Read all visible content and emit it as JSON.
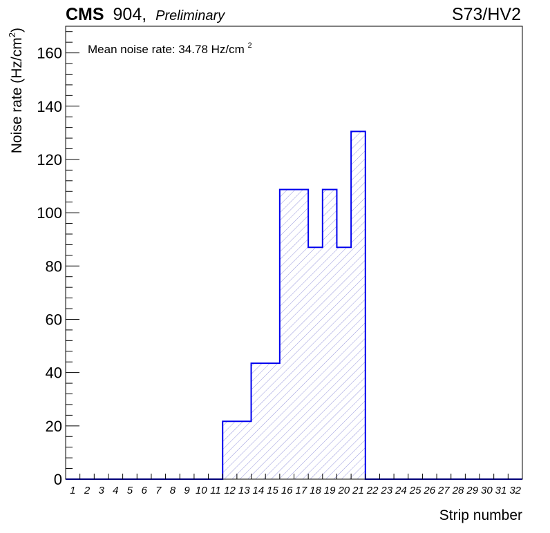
{
  "header": {
    "experiment": "CMS",
    "location": "904,",
    "status": "Preliminary",
    "run_label": "S73/HV2"
  },
  "annotation": {
    "text": "Mean noise rate: 34.78 Hz/cm",
    "superscript": "2"
  },
  "chart_data": {
    "type": "bar",
    "style": "step-histogram",
    "categories": [
      "1",
      "2",
      "3",
      "4",
      "5",
      "6",
      "7",
      "8",
      "9",
      "10",
      "11",
      "12",
      "13",
      "14",
      "15",
      "16",
      "17",
      "18",
      "19",
      "20",
      "21",
      "22",
      "23",
      "24",
      "25",
      "26",
      "27",
      "28",
      "29",
      "30",
      "31",
      "32"
    ],
    "values": [
      0,
      0,
      0,
      0,
      0,
      0,
      0,
      0,
      0,
      0,
      0,
      21.7,
      21.7,
      43.5,
      43.5,
      108.7,
      108.7,
      87.0,
      108.7,
      87.0,
      130.5,
      0,
      0,
      0,
      0,
      0,
      0,
      0,
      0,
      0,
      0,
      0
    ],
    "xlabel": "Strip number",
    "ylabel": "Noise rate (Hz/cm",
    "ylabel_superscript": "2",
    "ylabel_suffix": ")",
    "ylim": [
      0,
      170
    ],
    "yticks": [
      0,
      20,
      40,
      60,
      80,
      100,
      120,
      140,
      160
    ],
    "grid": false,
    "line_color": "#0000ee",
    "fill_color": "#9999dd",
    "fill_pattern": "diagonal-hatch"
  }
}
